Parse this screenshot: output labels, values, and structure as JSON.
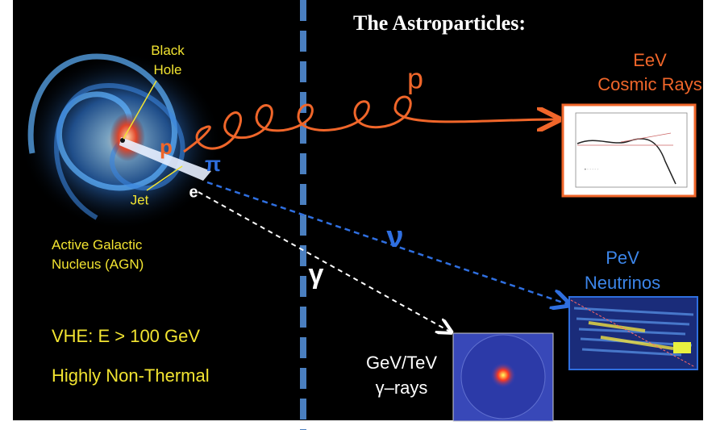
{
  "title": "The Astroparticles:",
  "agn": {
    "black_hole": [
      "Black",
      "Hole"
    ],
    "jet": "Jet",
    "proton": "p",
    "pion": "π",
    "electron": "e",
    "name": [
      "Active Galactic",
      "Nucleus (AGN)"
    ]
  },
  "notes": [
    "VHE:  E > 100 GeV",
    "Highly Non-Thermal"
  ],
  "cosmic_rays": {
    "particle": "p",
    "label": [
      "EeV",
      "Cosmic Rays"
    ]
  },
  "neutrinos": {
    "particle": "ν",
    "label": [
      "PeV",
      "Neutrinos"
    ]
  },
  "gamma_rays": {
    "particle": "γ",
    "label": [
      "GeV/TeV",
      "γ–rays"
    ]
  }
}
